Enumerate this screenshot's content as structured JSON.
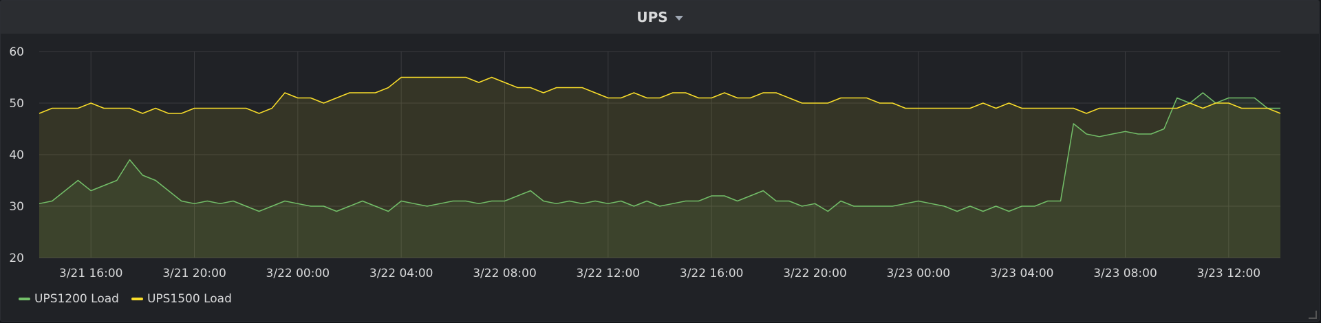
{
  "panel": {
    "title": "UPS",
    "menu_icon": "chevron-down-icon"
  },
  "legend": [
    {
      "label": "UPS1200 Load",
      "color": "#73bf69"
    },
    {
      "label": "UPS1500 Load",
      "color": "#fade2a"
    }
  ],
  "chart_data": {
    "type": "area",
    "title": "UPS",
    "xlabel": "",
    "ylabel": "",
    "ylim": [
      20,
      60
    ],
    "yticks": [
      20,
      30,
      40,
      50,
      60
    ],
    "x_unit": "hours after 3/21 14:00",
    "xlim": [
      0,
      48
    ],
    "xticks": [
      {
        "x": 2,
        "label": "3/21 16:00"
      },
      {
        "x": 6,
        "label": "3/21 20:00"
      },
      {
        "x": 10,
        "label": "3/22 00:00"
      },
      {
        "x": 14,
        "label": "3/22 04:00"
      },
      {
        "x": 18,
        "label": "3/22 08:00"
      },
      {
        "x": 22,
        "label": "3/22 12:00"
      },
      {
        "x": 26,
        "label": "3/22 16:00"
      },
      {
        "x": 30,
        "label": "3/22 20:00"
      },
      {
        "x": 34,
        "label": "3/23 00:00"
      },
      {
        "x": 38,
        "label": "3/23 04:00"
      },
      {
        "x": 42,
        "label": "3/23 08:00"
      },
      {
        "x": 46,
        "label": "3/23 12:00"
      }
    ],
    "grid": true,
    "legend_position": "bottom-left",
    "series": [
      {
        "name": "UPS1200 Load",
        "color": "#73bf69",
        "x": [
          0,
          0.5,
          1,
          1.5,
          2,
          2.5,
          3,
          3.5,
          4,
          4.5,
          5,
          5.5,
          6,
          6.5,
          7,
          7.5,
          8,
          8.5,
          9,
          9.5,
          10,
          10.5,
          11,
          11.5,
          12,
          12.5,
          13,
          13.5,
          14,
          14.5,
          15,
          15.5,
          16,
          16.5,
          17,
          17.5,
          18,
          18.5,
          19,
          19.5,
          20,
          20.5,
          21,
          21.5,
          22,
          22.5,
          23,
          23.5,
          24,
          24.5,
          25,
          25.5,
          26,
          26.5,
          27,
          27.5,
          28,
          28.5,
          29,
          29.5,
          30,
          30.5,
          31,
          31.5,
          32,
          32.5,
          33,
          33.5,
          34,
          34.5,
          35,
          35.5,
          36,
          36.5,
          37,
          37.5,
          38,
          38.5,
          39,
          39.5,
          40,
          40.5,
          41,
          41.5,
          42,
          42.5,
          43,
          43.5,
          44,
          44.5,
          45,
          45.5,
          46,
          46.5,
          47,
          47.5,
          48
        ],
        "values": [
          30.5,
          31,
          33,
          35,
          33,
          34,
          35,
          39,
          36,
          35,
          33,
          31,
          30.5,
          31,
          30.5,
          31,
          30,
          29,
          30,
          31,
          30.5,
          30,
          30,
          29,
          30,
          31,
          30,
          29,
          31,
          30.5,
          30,
          30.5,
          31,
          31,
          30.5,
          31,
          31,
          32,
          33,
          31,
          30.5,
          31,
          30.5,
          31,
          30.5,
          31,
          30,
          31,
          30,
          30.5,
          31,
          31,
          32,
          32,
          31,
          32,
          33,
          31,
          31,
          30,
          30.5,
          29,
          31,
          30,
          30,
          30,
          30,
          30.5,
          31,
          30.5,
          30,
          29,
          30,
          29,
          30,
          29,
          30,
          30,
          31,
          31,
          46,
          44,
          43.5,
          44,
          44.5,
          44,
          44,
          45,
          51,
          50,
          52,
          50,
          51,
          51,
          51,
          49,
          49
        ]
      },
      {
        "name": "UPS1500 Load",
        "color": "#fade2a",
        "x": [
          0,
          0.5,
          1,
          1.5,
          2,
          2.5,
          3,
          3.5,
          4,
          4.5,
          5,
          5.5,
          6,
          6.5,
          7,
          7.5,
          8,
          8.5,
          9,
          9.5,
          10,
          10.5,
          11,
          11.5,
          12,
          12.5,
          13,
          13.5,
          14,
          14.5,
          15,
          15.5,
          16,
          16.5,
          17,
          17.5,
          18,
          18.5,
          19,
          19.5,
          20,
          20.5,
          21,
          21.5,
          22,
          22.5,
          23,
          23.5,
          24,
          24.5,
          25,
          25.5,
          26,
          26.5,
          27,
          27.5,
          28,
          28.5,
          29,
          29.5,
          30,
          30.5,
          31,
          31.5,
          32,
          32.5,
          33,
          33.5,
          34,
          34.5,
          35,
          35.5,
          36,
          36.5,
          37,
          37.5,
          38,
          38.5,
          39,
          39.5,
          40,
          40.5,
          41,
          41.5,
          42,
          42.5,
          43,
          43.5,
          44,
          44.5,
          45,
          45.5,
          46,
          46.5,
          47,
          47.5,
          48
        ],
        "values": [
          48,
          49,
          49,
          49,
          50,
          49,
          49,
          49,
          48,
          49,
          48,
          48,
          49,
          49,
          49,
          49,
          49,
          48,
          49,
          52,
          51,
          51,
          50,
          51,
          52,
          52,
          52,
          53,
          55,
          55,
          55,
          55,
          55,
          55,
          54,
          55,
          54,
          53,
          53,
          52,
          53,
          53,
          53,
          52,
          51,
          51,
          52,
          51,
          51,
          52,
          52,
          51,
          51,
          52,
          51,
          51,
          52,
          52,
          51,
          50,
          50,
          50,
          51,
          51,
          51,
          50,
          50,
          49,
          49,
          49,
          49,
          49,
          49,
          50,
          49,
          50,
          49,
          49,
          49,
          49,
          49,
          48,
          49,
          49,
          49,
          49,
          49,
          49,
          49,
          50,
          49,
          50,
          50,
          49,
          49,
          49,
          48
        ]
      }
    ]
  }
}
